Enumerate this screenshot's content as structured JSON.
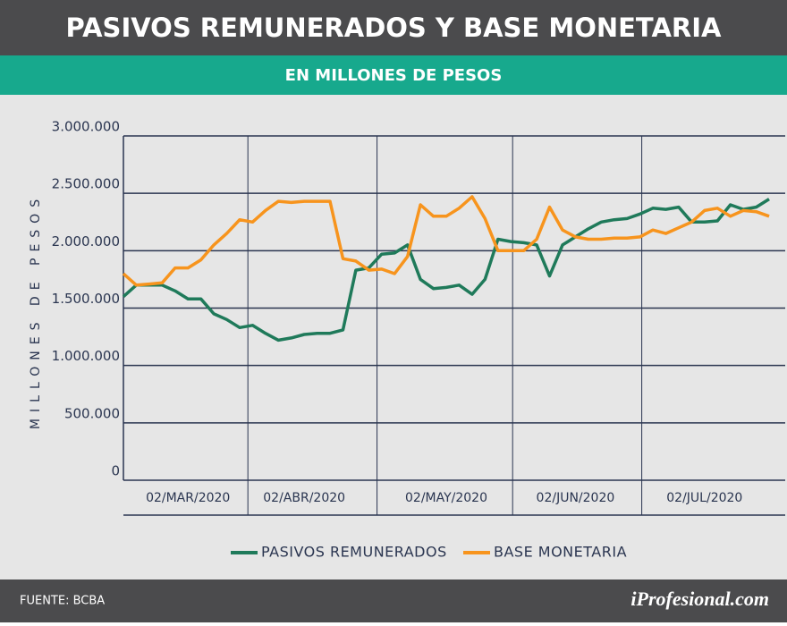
{
  "chart_data": {
    "type": "line",
    "title": "PASIVOS REMUNERADOS Y BASE MONETARIA",
    "subtitle": "EN MILLONES DE PESOS",
    "y_label": "MILLONES DE PESOS",
    "categories": [
      null,
      null,
      null,
      null,
      null,
      "02/MAR/2020",
      null,
      null,
      null,
      null,
      null,
      null,
      null,
      null,
      "02/ABR/2020",
      null,
      null,
      null,
      null,
      null,
      null,
      null,
      null,
      null,
      null,
      "02/MAY/2020",
      null,
      null,
      null,
      null,
      null,
      null,
      null,
      null,
      null,
      "02/JUN/2020",
      null,
      null,
      null,
      null,
      null,
      null,
      null,
      null,
      null,
      "02/JUL/2020",
      null,
      null,
      null,
      null,
      null
    ],
    "series": [
      {
        "name": "PASIVOS REMUNERADOS",
        "color": "#1f7a5a",
        "values": [
          1600000,
          1700000,
          1700000,
          1700000,
          1650000,
          1580000,
          1580000,
          1450000,
          1400000,
          1330000,
          1350000,
          1280000,
          1220000,
          1240000,
          1270000,
          1280000,
          1280000,
          1310000,
          1830000,
          1850000,
          1970000,
          1980000,
          2050000,
          1750000,
          1670000,
          1680000,
          1700000,
          1620000,
          1750000,
          2100000,
          2080000,
          2070000,
          2050000,
          1780000,
          2050000,
          2120000,
          2190000,
          2250000,
          2270000,
          2280000,
          2320000,
          2370000,
          2360000,
          2380000,
          2250000,
          2250000,
          2260000,
          2400000,
          2360000,
          2380000,
          2450000
        ]
      },
      {
        "name": "BASE MONETARIA",
        "color": "#f7941d",
        "values": [
          1800000,
          1700000,
          1710000,
          1720000,
          1850000,
          1850000,
          1920000,
          2050000,
          2150000,
          2270000,
          2250000,
          2350000,
          2430000,
          2420000,
          2430000,
          2430000,
          2430000,
          1930000,
          1910000,
          1830000,
          1840000,
          1800000,
          1950000,
          2400000,
          2300000,
          2300000,
          2370000,
          2470000,
          2280000,
          2000000,
          2000000,
          2000000,
          2100000,
          2380000,
          2180000,
          2120000,
          2100000,
          2100000,
          2110000,
          2110000,
          2120000,
          2180000,
          2150000,
          2200000,
          2250000,
          2350000,
          2370000,
          2300000,
          2350000,
          2340000,
          2300000
        ]
      }
    ],
    "ylim": [
      0,
      3000000
    ],
    "yticks": [
      0,
      {
        "value": 500000,
        "label": "500.000"
      },
      {
        "value": 1000000,
        "label": "1.000.000"
      },
      {
        "value": 1500000,
        "label": "1.500.000"
      },
      {
        "value": 2000000,
        "label": "2.000.000"
      },
      {
        "value": 2500000,
        "label": "2.500.000"
      },
      {
        "value": 3000000,
        "label": "3.000.000"
      }
    ],
    "grid": true,
    "legend": "bottom"
  },
  "footer": {
    "source": "FUENTE: BCBA",
    "brand": "iProfesional.com"
  }
}
